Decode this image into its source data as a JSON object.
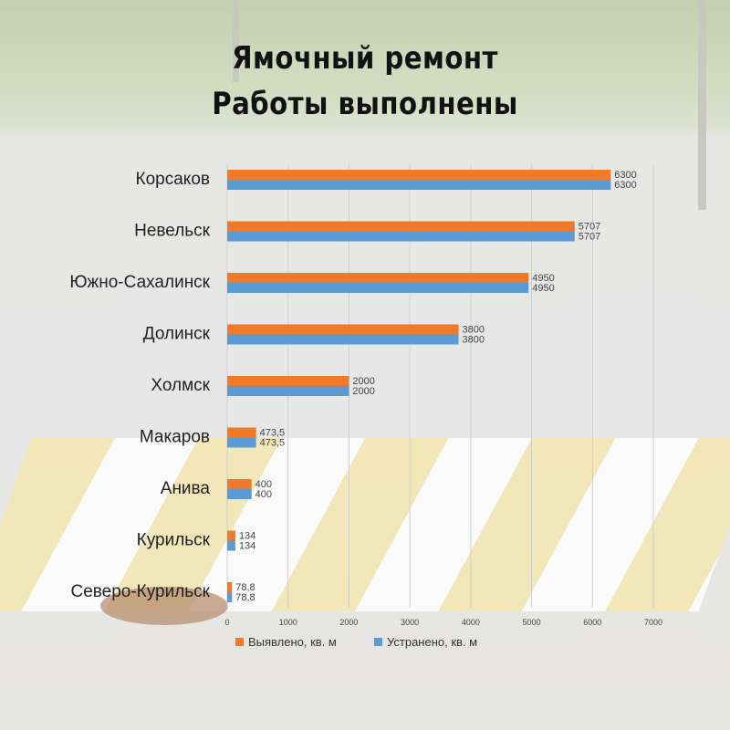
{
  "title_line1": "Ямочный ремонт",
  "title_line2": "Работы выполнены",
  "chart_data": {
    "type": "bar",
    "orientation": "horizontal",
    "categories": [
      "Корсаков",
      "Невельск",
      "Южно-Сахалинск",
      "Долинск",
      "Холмск",
      "Макаров",
      "Анива",
      "Курильск",
      "Северо-Курильск"
    ],
    "series": [
      {
        "name": "Выявлено, кв. м",
        "color": "#F07A29",
        "values": [
          6300,
          5707,
          4950,
          3800,
          2000,
          473.5,
          400,
          134,
          78.8
        ],
        "labels": [
          "6300",
          "5707",
          "4950",
          "3800",
          "2000",
          "473,5",
          "400",
          "134",
          "78,8"
        ]
      },
      {
        "name": "Устранено, кв. м",
        "color": "#5B9BD5",
        "values": [
          6300,
          5707,
          4950,
          3800,
          2000,
          473.5,
          400,
          134,
          78.8
        ],
        "labels": [
          "6300",
          "5707",
          "4950",
          "3800",
          "2000",
          "473,5",
          "400",
          "134",
          "78,8"
        ]
      }
    ],
    "xlim": [
      0,
      7000
    ],
    "ticks": [
      "0",
      "1000",
      "2000",
      "3000",
      "4000",
      "5000",
      "6000",
      "7000"
    ],
    "grid": true,
    "legend_position": "bottom"
  }
}
